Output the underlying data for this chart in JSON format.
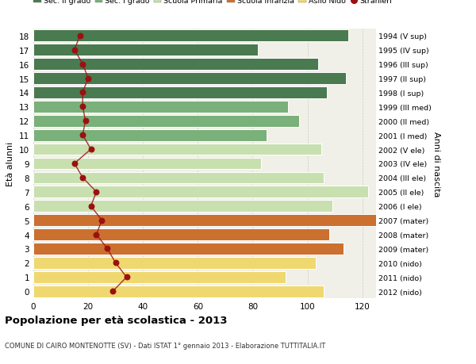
{
  "ages": [
    18,
    17,
    16,
    15,
    14,
    13,
    12,
    11,
    10,
    9,
    8,
    7,
    6,
    5,
    4,
    3,
    2,
    1,
    0
  ],
  "right_labels": [
    "1994 (V sup)",
    "1995 (IV sup)",
    "1996 (III sup)",
    "1997 (II sup)",
    "1998 (I sup)",
    "1999 (III med)",
    "2000 (II med)",
    "2001 (I med)",
    "2002 (V ele)",
    "2003 (IV ele)",
    "2004 (III ele)",
    "2005 (II ele)",
    "2006 (I ele)",
    "2007 (mater)",
    "2008 (mater)",
    "2009 (mater)",
    "2010 (nido)",
    "2011 (nido)",
    "2012 (nido)"
  ],
  "bar_values": [
    115,
    82,
    104,
    114,
    107,
    93,
    97,
    85,
    105,
    83,
    106,
    122,
    109,
    125,
    108,
    113,
    103,
    92,
    106
  ],
  "bar_colors": [
    "#4a7a50",
    "#4a7a50",
    "#4a7a50",
    "#4a7a50",
    "#4a7a50",
    "#7ab07a",
    "#7ab07a",
    "#7ab07a",
    "#c8e0b0",
    "#c8e0b0",
    "#c8e0b0",
    "#c8e0b0",
    "#c8e0b0",
    "#cc7030",
    "#cc7030",
    "#cc7030",
    "#f0d870",
    "#f0d870",
    "#f0d870"
  ],
  "stranieri_values": [
    17,
    15,
    18,
    20,
    18,
    18,
    19,
    18,
    21,
    15,
    18,
    23,
    21,
    25,
    23,
    27,
    30,
    34,
    29
  ],
  "legend_labels": [
    "Sec. II grado",
    "Sec. I grado",
    "Scuola Primaria",
    "Scuola Infanzia",
    "Asilo Nido",
    "Stranieri"
  ],
  "legend_colors": [
    "#4a7a50",
    "#7ab07a",
    "#c8e0b0",
    "#cc7030",
    "#f0d870",
    "#9b1010"
  ],
  "ylabel_left": "Età alunni",
  "ylabel_right": "Anni di nascita",
  "title": "Popolazione per età scolastica - 2013",
  "subtitle": "COMUNE DI CAIRO MONTENOTTE (SV) - Dati ISTAT 1° gennaio 2013 - Elaborazione TUTTITALIA.IT",
  "xlim": [
    0,
    125
  ],
  "xticks": [
    0,
    20,
    40,
    60,
    80,
    100,
    120
  ],
  "background_color": "#ffffff",
  "plot_bg_color": "#f0f0e8",
  "grid_color": "#cccccc"
}
